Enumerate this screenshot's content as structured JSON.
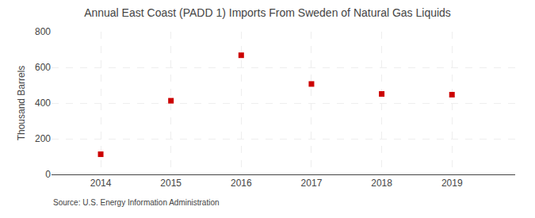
{
  "chart_data": {
    "type": "scatter",
    "title": "Annual East Coast (PADD 1) Imports From Sweden of Natural Gas Liquids",
    "ylabel": "Thousand Barrels",
    "annotations": [
      "Source: U.S. Energy Information Administration"
    ],
    "x": [
      2014,
      2015,
      2016,
      2017,
      2018,
      2019
    ],
    "values": [
      113,
      413,
      668,
      507,
      451,
      447
    ],
    "xlim": [
      2013.3,
      2019.9
    ],
    "xticks": [
      2014,
      2015,
      2016,
      2017,
      2018,
      2019
    ],
    "ylim": [
      0,
      800
    ],
    "yticks": [
      0,
      200,
      400,
      600,
      800
    ],
    "color": "#CC0000",
    "marker": "square",
    "grid": true
  }
}
